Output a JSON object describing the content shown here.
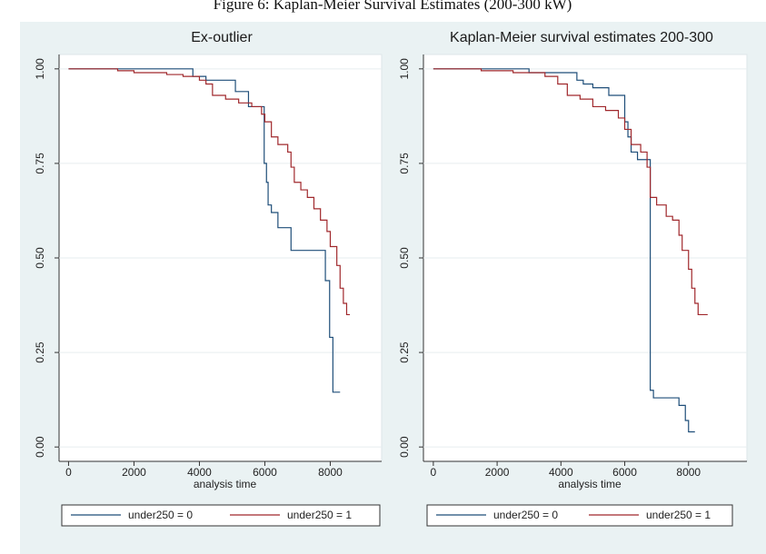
{
  "figure_title": "Figure 6: Kaplan-Meier Survival Estimates (200-300 kW)",
  "chart_data": [
    {
      "type": "step",
      "title": "Ex-outlier",
      "xlabel": "analysis time",
      "xlim": [
        -290,
        9570
      ],
      "ylim": [
        -0.038,
        1.038
      ],
      "xticks": [
        0,
        2000,
        4000,
        6000,
        8000
      ],
      "yticks": [
        {
          "value": 0,
          "label": "0.00"
        },
        {
          "value": 0.25,
          "label": "0.25"
        },
        {
          "value": 0.5,
          "label": "0.50"
        },
        {
          "value": 0.75,
          "label": "0.75"
        },
        {
          "value": 1,
          "label": "1.00"
        }
      ],
      "grid": true,
      "series": [
        {
          "name": "under250 = 0",
          "color": "#1f4e79",
          "x": [
            0,
            3800,
            4200,
            5100,
            5500,
            5980,
            6050,
            6100,
            6200,
            6400,
            6800,
            7850,
            7980,
            8080,
            8300
          ],
          "values": [
            1.0,
            0.98,
            0.97,
            0.94,
            0.9,
            0.75,
            0.7,
            0.64,
            0.62,
            0.58,
            0.52,
            0.44,
            0.29,
            0.145,
            0.145
          ]
        },
        {
          "name": "under250 = 1",
          "color": "#a0282c",
          "x": [
            0,
            1500,
            2000,
            3000,
            3500,
            4000,
            4200,
            4400,
            4800,
            5200,
            5600,
            5900,
            6000,
            6200,
            6400,
            6700,
            6800,
            6900,
            7100,
            7300,
            7500,
            7700,
            7900,
            8000,
            8200,
            8300,
            8400,
            8500,
            8600
          ],
          "values": [
            1.0,
            0.995,
            0.99,
            0.985,
            0.98,
            0.97,
            0.96,
            0.93,
            0.92,
            0.91,
            0.9,
            0.88,
            0.86,
            0.82,
            0.8,
            0.78,
            0.74,
            0.7,
            0.68,
            0.66,
            0.63,
            0.6,
            0.57,
            0.53,
            0.48,
            0.42,
            0.38,
            0.35,
            0.35
          ]
        }
      ]
    },
    {
      "type": "step",
      "title": "Kaplan-Meier survival estimates 200-300",
      "xlabel": "analysis time",
      "xlim": [
        -310,
        9830
      ],
      "ylim": [
        -0.038,
        1.038
      ],
      "xticks": [
        0,
        2000,
        4000,
        6000,
        8000
      ],
      "yticks": [
        {
          "value": 0,
          "label": "0.00"
        },
        {
          "value": 0.25,
          "label": "0.25"
        },
        {
          "value": 0.5,
          "label": "0.50"
        },
        {
          "value": 0.75,
          "label": "0.75"
        },
        {
          "value": 1,
          "label": "1.00"
        }
      ],
      "grid": true,
      "series": [
        {
          "name": "under250 = 0",
          "color": "#1f4e79",
          "x": [
            0,
            3000,
            4500,
            4700,
            5000,
            5500,
            6000,
            6100,
            6200,
            6400,
            6800,
            6900,
            7700,
            7900,
            8000,
            8200
          ],
          "values": [
            1.0,
            0.99,
            0.97,
            0.96,
            0.95,
            0.93,
            0.86,
            0.82,
            0.78,
            0.76,
            0.15,
            0.13,
            0.11,
            0.07,
            0.04,
            0.04
          ]
        },
        {
          "name": "under250 = 1",
          "color": "#a0282c",
          "x": [
            0,
            1500,
            2500,
            3500,
            3900,
            4200,
            4600,
            5000,
            5400,
            5800,
            6000,
            6200,
            6500,
            6700,
            6800,
            7000,
            7300,
            7500,
            7700,
            7800,
            8000,
            8100,
            8200,
            8300,
            8600
          ],
          "values": [
            1.0,
            0.995,
            0.99,
            0.98,
            0.96,
            0.93,
            0.92,
            0.9,
            0.89,
            0.87,
            0.84,
            0.8,
            0.78,
            0.74,
            0.66,
            0.64,
            0.61,
            0.6,
            0.56,
            0.52,
            0.47,
            0.42,
            0.38,
            0.35,
            0.35
          ]
        }
      ]
    }
  ]
}
